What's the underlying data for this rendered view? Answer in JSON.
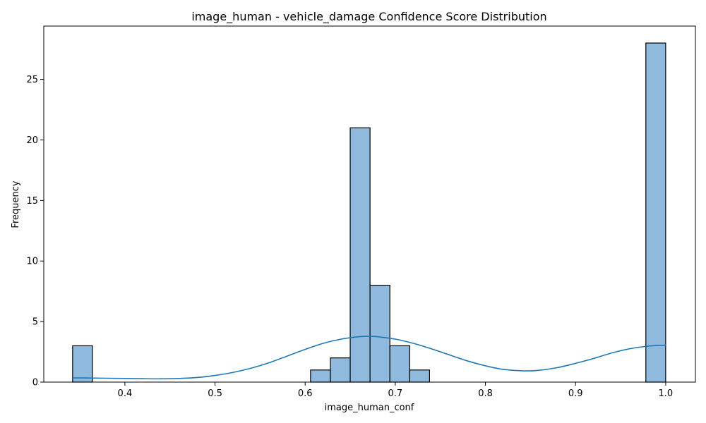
{
  "chart_data": {
    "type": "bar",
    "title": "image_human - vehicle_damage Confidence Score Distribution",
    "xlabel": "image_human_conf",
    "ylabel": "Frequency",
    "xlim": [
      0.31,
      1.033
    ],
    "ylim": [
      0,
      29.4
    ],
    "xticks": [
      0.4,
      0.5,
      0.6,
      0.7,
      0.8,
      0.9,
      1.0
    ],
    "xtick_labels": [
      "0.4",
      "0.5",
      "0.6",
      "0.7",
      "0.8",
      "0.9",
      "1.0"
    ],
    "yticks": [
      0,
      5,
      10,
      15,
      20,
      25
    ],
    "ytick_labels": [
      "0",
      "5",
      "10",
      "15",
      "20",
      "25"
    ],
    "bars": [
      {
        "x0": 0.342,
        "x1": 0.364,
        "count": 3
      },
      {
        "x0": 0.606,
        "x1": 0.628,
        "count": 1
      },
      {
        "x0": 0.628,
        "x1": 0.65,
        "count": 2
      },
      {
        "x0": 0.65,
        "x1": 0.672,
        "count": 21
      },
      {
        "x0": 0.672,
        "x1": 0.694,
        "count": 8
      },
      {
        "x0": 0.694,
        "x1": 0.716,
        "count": 3
      },
      {
        "x0": 0.716,
        "x1": 0.738,
        "count": 1
      },
      {
        "x0": 0.978,
        "x1": 1.0,
        "count": 28
      }
    ],
    "kde": {
      "x": [
        0.342,
        0.36,
        0.38,
        0.4,
        0.42,
        0.44,
        0.46,
        0.48,
        0.5,
        0.52,
        0.54,
        0.56,
        0.58,
        0.6,
        0.62,
        0.64,
        0.66,
        0.672,
        0.68,
        0.7,
        0.72,
        0.74,
        0.76,
        0.78,
        0.8,
        0.82,
        0.843,
        0.86,
        0.88,
        0.9,
        0.92,
        0.94,
        0.96,
        0.98,
        1.0
      ],
      "y": [
        0.35,
        0.34,
        0.32,
        0.3,
        0.28,
        0.27,
        0.3,
        0.38,
        0.55,
        0.8,
        1.15,
        1.6,
        2.15,
        2.7,
        3.2,
        3.55,
        3.75,
        3.78,
        3.75,
        3.55,
        3.2,
        2.75,
        2.25,
        1.75,
        1.35,
        1.05,
        0.93,
        0.98,
        1.2,
        1.55,
        1.95,
        2.4,
        2.75,
        2.97,
        3.05
      ]
    },
    "colors": {
      "bar_fill": "#8fbadd",
      "bar_edge": "#000000",
      "kde_line": "#1f77b4"
    },
    "grid": false,
    "legend": "none"
  }
}
